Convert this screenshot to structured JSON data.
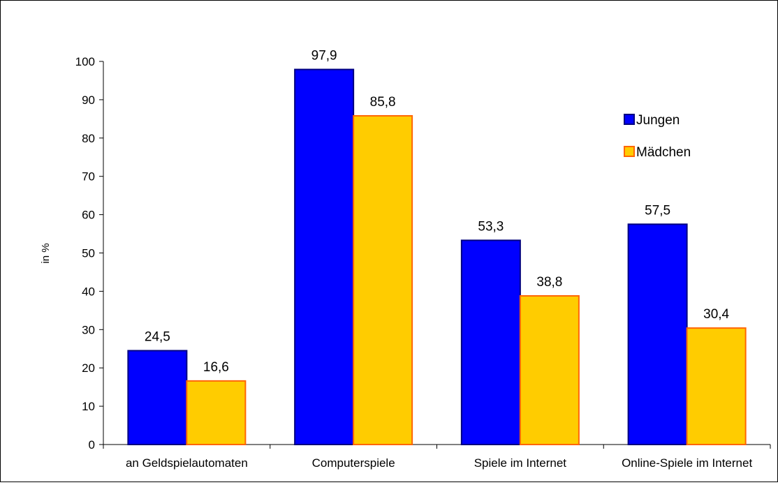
{
  "chart_data": {
    "type": "bar",
    "title": "",
    "xlabel": "",
    "ylabel": "in %",
    "ylim": [
      0,
      100
    ],
    "yticks": [
      0,
      10,
      20,
      30,
      40,
      50,
      60,
      70,
      80,
      90,
      100
    ],
    "ytick_labels": [
      "0",
      "10",
      "20",
      "30",
      "40",
      "50",
      "60",
      "70",
      "80",
      "90",
      "100"
    ],
    "grid": false,
    "legend_position": "right",
    "categories": [
      "an Geldspielautomaten",
      "Computerspiele",
      "Spiele im Internet",
      "Online-Spiele im Internet"
    ],
    "series": [
      {
        "name": "Jungen",
        "color": "#0000ff",
        "edge_color": "#000080",
        "values": [
          24.5,
          97.9,
          53.3,
          57.5
        ],
        "labels": [
          "24,5",
          "97,9",
          "53,3",
          "57,5"
        ]
      },
      {
        "name": "Mädchen",
        "color": "#ffcc00",
        "edge_color": "#ff6600",
        "values": [
          16.6,
          85.8,
          38.8,
          30.4
        ],
        "labels": [
          "16,6",
          "85,8",
          "38,8",
          "30,4"
        ]
      }
    ]
  }
}
